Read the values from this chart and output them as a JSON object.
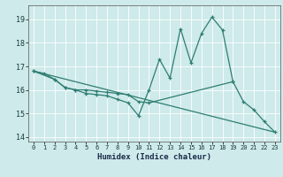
{
  "title": "",
  "xlabel": "Humidex (Indice chaleur)",
  "background_color": "#ceeaea",
  "line_color": "#2e7d72",
  "xlim": [
    -0.5,
    23.5
  ],
  "ylim": [
    13.8,
    19.6
  ],
  "yticks": [
    14,
    15,
    16,
    17,
    18,
    19
  ],
  "xticks": [
    0,
    1,
    2,
    3,
    4,
    5,
    6,
    7,
    8,
    9,
    10,
    11,
    12,
    13,
    14,
    15,
    16,
    17,
    18,
    19,
    20,
    21,
    22,
    23
  ],
  "series1": [
    [
      0,
      16.8
    ],
    [
      1,
      16.7
    ],
    [
      2,
      16.45
    ],
    [
      3,
      16.1
    ],
    [
      4,
      16.0
    ],
    [
      5,
      15.85
    ],
    [
      6,
      15.8
    ],
    [
      7,
      15.75
    ],
    [
      8,
      15.6
    ],
    [
      9,
      15.45
    ],
    [
      10,
      14.9
    ],
    [
      11,
      16.0
    ],
    [
      12,
      17.3
    ],
    [
      13,
      16.5
    ],
    [
      14,
      18.6
    ],
    [
      15,
      17.15
    ],
    [
      16,
      18.4
    ],
    [
      17,
      19.1
    ],
    [
      18,
      18.55
    ],
    [
      19,
      16.35
    ],
    [
      20,
      15.5
    ],
    [
      21,
      15.15
    ],
    [
      22,
      14.65
    ],
    [
      23,
      14.2
    ]
  ],
  "series2": [
    [
      0,
      16.8
    ],
    [
      2,
      16.45
    ],
    [
      3,
      16.1
    ],
    [
      4,
      16.0
    ],
    [
      5,
      16.0
    ],
    [
      6,
      15.95
    ],
    [
      7,
      15.9
    ],
    [
      8,
      15.85
    ],
    [
      9,
      15.8
    ],
    [
      10,
      15.5
    ],
    [
      11,
      15.45
    ],
    [
      19,
      16.35
    ]
  ],
  "series3": [
    [
      0,
      16.8
    ],
    [
      23,
      14.2
    ]
  ]
}
